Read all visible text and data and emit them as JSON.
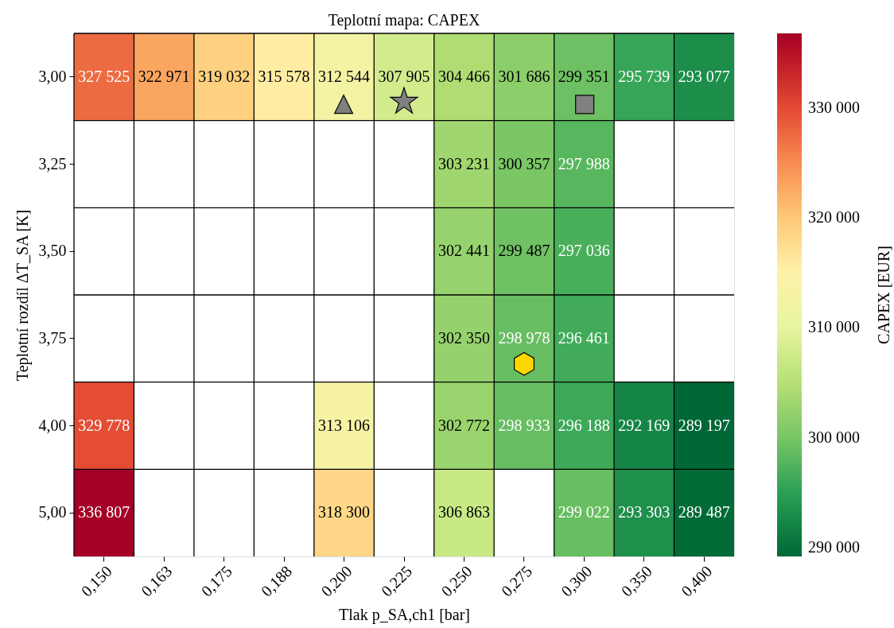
{
  "chart_data": {
    "type": "heatmap",
    "title": "Teplotní mapa: CAPEX",
    "xlabel": "Tlak p_SA,ch1 [bar]",
    "ylabel": "Teplotní rozdíl ΔT_SA [K]",
    "clabel": "CAPEX [EUR]",
    "categories": [
      "0,150",
      "0,163",
      "0,175",
      "0,188",
      "0,200",
      "0,225",
      "0,250",
      "0,275",
      "0,300",
      "0,350",
      "0,400"
    ],
    "y_categories": [
      "3,00",
      "3,25",
      "3,50",
      "3,75",
      "4,00",
      "5,00"
    ],
    "cells": [
      [
        327525,
        322971,
        319032,
        315578,
        312544,
        307905,
        304466,
        301686,
        299351,
        295739,
        293077
      ],
      [
        null,
        null,
        null,
        null,
        null,
        null,
        303231,
        300357,
        297988,
        null,
        null
      ],
      [
        null,
        null,
        null,
        null,
        null,
        null,
        302441,
        299487,
        297036,
        null,
        null
      ],
      [
        null,
        null,
        null,
        null,
        null,
        null,
        302350,
        298978,
        296461,
        null,
        null
      ],
      [
        329778,
        null,
        null,
        null,
        313106,
        null,
        302772,
        298933,
        296188,
        292169,
        289197
      ],
      [
        336807,
        null,
        null,
        null,
        318300,
        null,
        306863,
        null,
        299022,
        293303,
        289487
      ]
    ],
    "cell_labels": [
      [
        "327 525",
        "322 971",
        "319 032",
        "315 578",
        "312 544",
        "307 905",
        "304 466",
        "301 686",
        "299 351",
        "295 739",
        "293 077"
      ],
      [
        null,
        null,
        null,
        null,
        null,
        null,
        "303 231",
        "300 357",
        "297 988",
        null,
        null
      ],
      [
        null,
        null,
        null,
        null,
        null,
        null,
        "302 441",
        "299 487",
        "297 036",
        null,
        null
      ],
      [
        null,
        null,
        null,
        null,
        null,
        null,
        "302 350",
        "298 978",
        "296 461",
        null,
        null
      ],
      [
        "329 778",
        null,
        null,
        null,
        "313 106",
        null,
        "302 772",
        "298 933",
        "296 188",
        "292 169",
        "289 197"
      ],
      [
        "336 807",
        null,
        null,
        null,
        "318 300",
        null,
        "306 863",
        null,
        "299 022",
        "293 303",
        "289 487"
      ]
    ],
    "clim": [
      289197,
      336807
    ],
    "cticks": [
      {
        "value": 290000,
        "label": "290 000"
      },
      {
        "value": 300000,
        "label": "300 000"
      },
      {
        "value": 310000,
        "label": "310 000"
      },
      {
        "value": 320000,
        "label": "320 000"
      },
      {
        "value": 330000,
        "label": "330 000"
      }
    ],
    "grid": true,
    "annotations": [
      "▲",
      "★",
      "■",
      "⬢"
    ]
  }
}
